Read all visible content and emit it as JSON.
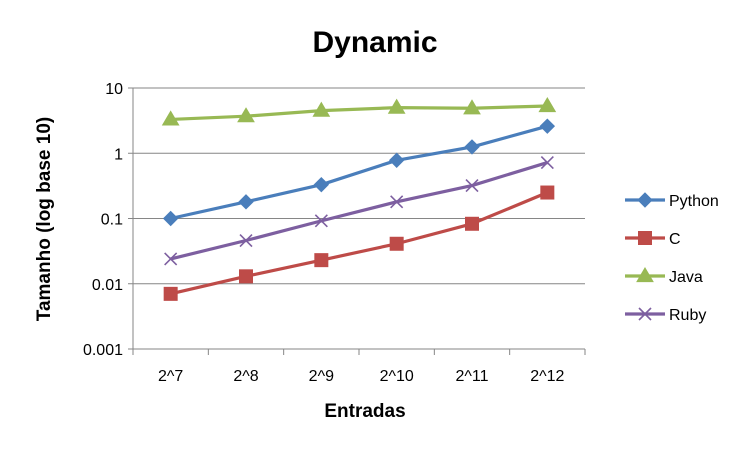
{
  "chart_data": {
    "type": "line",
    "title": "Dynamic",
    "xlabel": "Entradas",
    "ylabel": "Tamanho (log base 10)",
    "y_scale": "log10",
    "ylim": [
      0.001,
      10
    ],
    "y_ticks": [
      {
        "value": 10,
        "label": "10"
      },
      {
        "value": 1,
        "label": "1"
      },
      {
        "value": 0.1,
        "label": "0.1"
      },
      {
        "value": 0.01,
        "label": "0.01"
      },
      {
        "value": 0.001,
        "label": "0.001"
      }
    ],
    "grid": "horizontal major lines",
    "legend_position": "right",
    "categories": [
      "2^7",
      "2^8",
      "2^9",
      "2^10",
      "2^11",
      "2^12"
    ],
    "series": [
      {
        "name": "Python",
        "color": "#4a7ebb",
        "marker": "diamond",
        "values": [
          0.1,
          0.18,
          0.33,
          0.78,
          1.25,
          2.6
        ]
      },
      {
        "name": "C",
        "color": "#be4b48",
        "marker": "square",
        "values": [
          0.007,
          0.013,
          0.023,
          0.041,
          0.083,
          0.25
        ]
      },
      {
        "name": "Java",
        "color": "#98b954",
        "marker": "triangle",
        "values": [
          3.3,
          3.7,
          4.5,
          5.0,
          4.9,
          5.3
        ]
      },
      {
        "name": "Ruby",
        "color": "#7d5fa0",
        "marker": "x",
        "values": [
          0.024,
          0.046,
          0.092,
          0.18,
          0.32,
          0.72
        ]
      }
    ]
  }
}
